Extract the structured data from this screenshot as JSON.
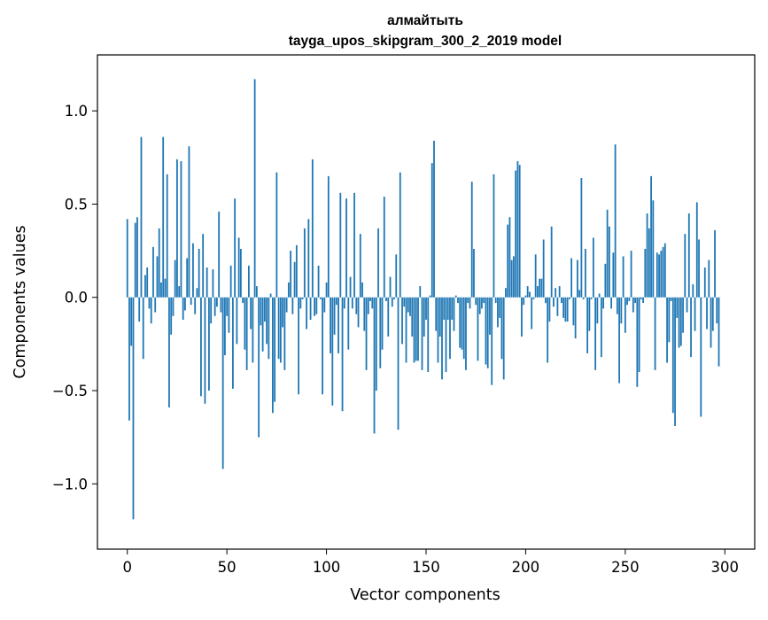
{
  "chart_data": {
    "type": "bar",
    "title": "алмайтыть",
    "subtitle": "tayga_upos_skipgram_300_2_2019 model",
    "xlabel": "Vector components",
    "ylabel": "Components values",
    "xlim": [
      -15,
      315
    ],
    "ylim": [
      -1.35,
      1.3
    ],
    "x_ticks": [
      0,
      50,
      100,
      150,
      200,
      250,
      300
    ],
    "x_tick_labels": [
      "0",
      "50",
      "100",
      "150",
      "200",
      "250",
      "300"
    ],
    "y_ticks": [
      -1.0,
      -0.5,
      0.0,
      0.5,
      1.0
    ],
    "y_tick_labels": [
      "−1.0",
      "−0.5",
      "0.0",
      "0.5",
      "1.0"
    ],
    "grid": false,
    "legend": "none",
    "bar_color": "#1f77b4",
    "values": [
      0.42,
      -0.66,
      -0.26,
      -1.19,
      0.4,
      0.43,
      -0.13,
      0.86,
      -0.33,
      0.12,
      0.16,
      -0.06,
      -0.14,
      0.27,
      -0.08,
      0.22,
      0.37,
      0.08,
      0.86,
      0.1,
      0.66,
      -0.59,
      -0.2,
      -0.1,
      0.2,
      0.74,
      0.06,
      0.73,
      -0.12,
      -0.07,
      0.21,
      0.81,
      -0.04,
      0.29,
      -0.09,
      0.05,
      0.26,
      -0.53,
      0.34,
      -0.57,
      0.16,
      -0.5,
      -0.14,
      0.15,
      -0.1,
      -0.05,
      0.46,
      -0.08,
      -0.92,
      -0.31,
      -0.1,
      -0.19,
      0.17,
      -0.49,
      0.53,
      -0.25,
      0.32,
      0.26,
      -0.03,
      -0.28,
      -0.39,
      0.17,
      -0.17,
      -0.35,
      1.17,
      0.06,
      -0.75,
      -0.15,
      -0.29,
      -0.13,
      -0.25,
      -0.33,
      0.02,
      -0.62,
      -0.56,
      0.67,
      -0.33,
      -0.35,
      -0.16,
      -0.39,
      -0.08,
      0.08,
      0.25,
      -0.09,
      0.19,
      0.28,
      -0.52,
      -0.06,
      -0.01,
      0.37,
      -0.17,
      0.42,
      -0.12,
      0.74,
      -0.1,
      -0.09,
      0.17,
      -0.01,
      -0.52,
      -0.08,
      0.08,
      0.65,
      -0.3,
      -0.58,
      -0.2,
      -0.04,
      -0.3,
      0.56,
      -0.61,
      -0.06,
      0.53,
      -0.28,
      0.11,
      -0.06,
      0.56,
      -0.09,
      -0.16,
      0.34,
      0.08,
      -0.18,
      -0.39,
      -0.09,
      -0.02,
      -0.06,
      -0.73,
      -0.5,
      0.37,
      -0.38,
      -0.28,
      0.54,
      -0.02,
      -0.21,
      0.11,
      -0.05,
      -0.01,
      0.23,
      -0.71,
      0.67,
      -0.25,
      -0.05,
      -0.35,
      -0.08,
      -0.1,
      -0.21,
      -0.35,
      -0.34,
      -0.34,
      0.06,
      -0.39,
      -0.21,
      -0.12,
      -0.4,
      0.01,
      0.72,
      0.84,
      -0.18,
      -0.35,
      -0.21,
      -0.44,
      -0.12,
      -0.4,
      -0.12,
      -0.33,
      -0.12,
      -0.18,
      0.01,
      -0.03,
      -0.27,
      -0.28,
      -0.33,
      -0.39,
      -0.03,
      -0.06,
      0.62,
      0.26,
      -0.04,
      -0.34,
      -0.09,
      -0.06,
      -0.03,
      -0.36,
      -0.38,
      -0.2,
      -0.47,
      0.66,
      -0.03,
      -0.16,
      -0.11,
      -0.33,
      -0.44,
      0.05,
      0.39,
      0.43,
      0.2,
      0.22,
      0.68,
      0.73,
      0.71,
      -0.21,
      -0.04,
      0.01,
      0.06,
      0.03,
      -0.17,
      -0.01,
      0.23,
      0.06,
      0.1,
      0.1,
      0.31,
      -0.03,
      -0.35,
      -0.13,
      0.38,
      -0.05,
      0.05,
      -0.1,
      0.06,
      -0.03,
      -0.11,
      -0.13,
      -0.13,
      -0.01,
      0.21,
      -0.15,
      -0.22,
      0.2,
      0.04,
      0.64,
      -0.01,
      0.26,
      -0.3,
      -0.18,
      -0.01,
      0.32,
      -0.39,
      -0.14,
      0.02,
      -0.32,
      -0.06,
      0.18,
      0.47,
      0.38,
      -0.06,
      0.24,
      0.82,
      -0.09,
      -0.46,
      -0.14,
      0.22,
      -0.19,
      -0.04,
      -0.02,
      0.25,
      -0.08,
      -0.03,
      -0.48,
      -0.4,
      -0.01,
      -0.03,
      0.26,
      0.45,
      0.37,
      0.65,
      0.52,
      -0.39,
      0.24,
      0.23,
      0.25,
      0.27,
      0.29,
      -0.35,
      -0.24,
      -0.02,
      -0.62,
      -0.69,
      -0.11,
      -0.27,
      -0.26,
      -0.19,
      0.34,
      -0.08,
      0.45,
      -0.32,
      0.07,
      -0.18,
      0.51,
      0.31,
      -0.64,
      0.0,
      0.16,
      -0.17,
      0.2,
      -0.27,
      -0.18,
      0.36,
      -0.14,
      -0.37
    ]
  }
}
